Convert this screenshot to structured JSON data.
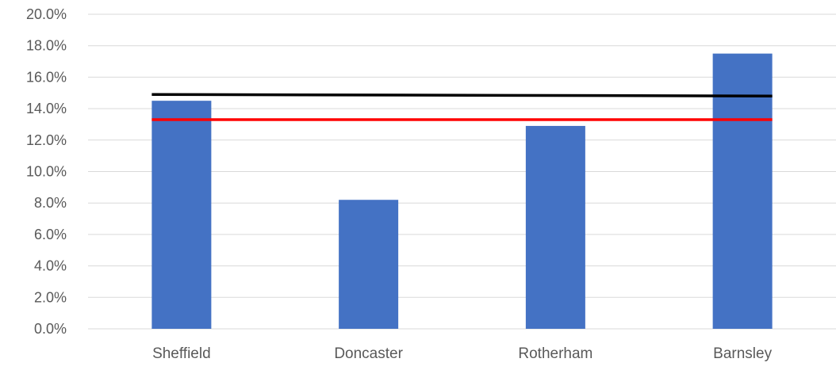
{
  "chart_data": {
    "type": "bar",
    "title": "",
    "xlabel": "",
    "ylabel": "",
    "categories": [
      "Sheffield",
      "Doncaster",
      "Rotherham",
      "Barnsley"
    ],
    "series": [
      {
        "type": "bar",
        "values": [
          14.5,
          8.2,
          12.9,
          17.5
        ],
        "color": "#4472c4"
      }
    ],
    "reference_lines": [
      {
        "start": 14.9,
        "end": 14.8,
        "color": "#000000"
      },
      {
        "start": 13.3,
        "end": 13.3,
        "color": "#ff0000"
      }
    ],
    "ylim": [
      0,
      20
    ],
    "y_ticks": [
      "0.0%",
      "2.0%",
      "4.0%",
      "6.0%",
      "8.0%",
      "10.0%",
      "12.0%",
      "14.0%",
      "16.0%",
      "18.0%",
      "20.0%"
    ],
    "grid": true,
    "legend": "none"
  }
}
